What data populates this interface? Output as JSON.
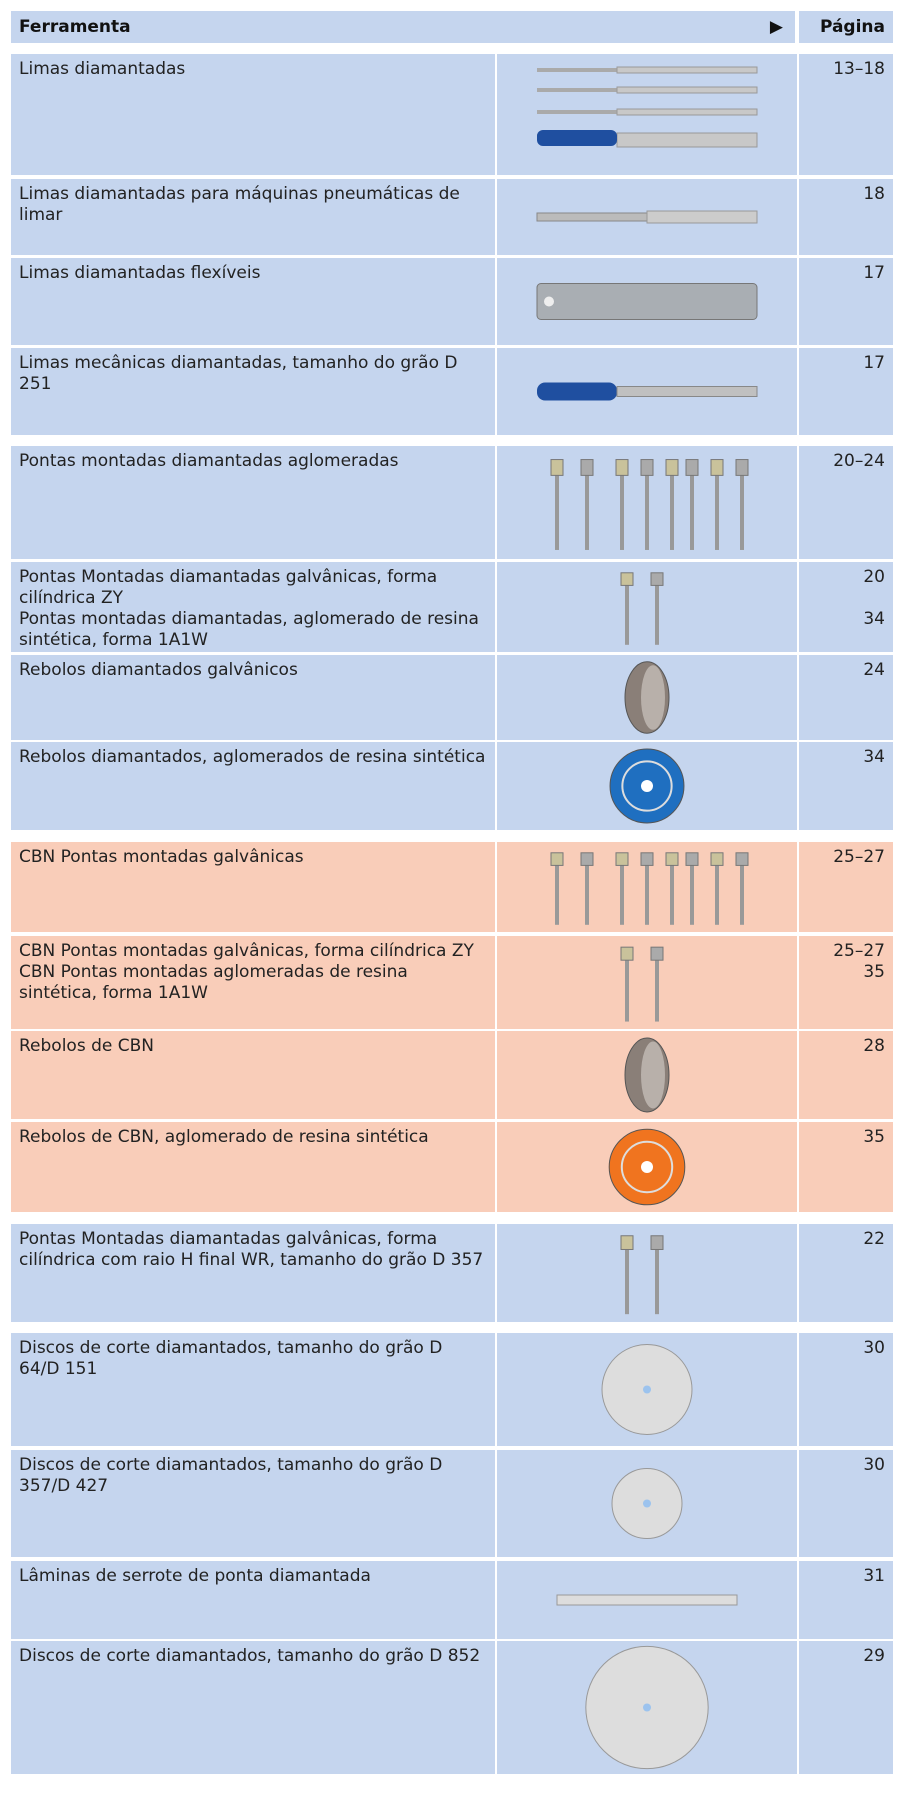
{
  "header": {
    "tool": "Ferramenta",
    "arrow": "▶",
    "page": "Página"
  },
  "rows": [
    {
      "entries": [
        {
          "tool": "Limas diamantadas",
          "page": "13–18"
        }
      ]
    },
    {
      "entries": [
        {
          "tool": "Limas diamantadas para máquinas pneumáticas de limar",
          "page": "18"
        }
      ]
    },
    {
      "entries": [
        {
          "tool": "Limas diamantadas flexíveis",
          "page": "17"
        }
      ]
    },
    {
      "entries": [
        {
          "tool": "Limas mecânicas diamantadas, tamanho do grão D 251",
          "page": "17"
        }
      ]
    },
    {
      "entries": [
        {
          "tool": "Pontas montadas diamantadas aglomeradas",
          "page": "20–24"
        }
      ]
    },
    {
      "entries": [
        {
          "tool": "Pontas Montadas diamantadas galvânicas, forma cilíndrica ZY",
          "page": "20"
        },
        {
          "tool": "Pontas montadas diamantadas, aglomerado de resina sintética, forma 1A1W",
          "page": "34"
        }
      ]
    },
    {
      "entries": [
        {
          "tool": "Rebolos diamantados galvânicos",
          "page": "24"
        }
      ]
    },
    {
      "entries": [
        {
          "tool": "Rebolos diamantados, aglomerados de resina sintética",
          "page": "34"
        }
      ]
    },
    {
      "entries": [
        {
          "tool": "CBN Pontas montadas galvânicas",
          "page": "25–27"
        }
      ]
    },
    {
      "entries": [
        {
          "tool": "CBN Pontas montadas galvânicas, forma cilíndrica ZY",
          "page": "25–27"
        },
        {
          "tool": "CBN Pontas montadas aglomeradas de resina sintética, forma 1A1W",
          "page": "35"
        }
      ]
    },
    {
      "entries": [
        {
          "tool": "Rebolos de CBN",
          "page": "28"
        }
      ]
    },
    {
      "entries": [
        {
          "tool": "Rebolos de CBN, aglomerado de resina sintética",
          "page": "35"
        }
      ]
    },
    {
      "entries": [
        {
          "tool": "Pontas Montadas diamantadas galvânicas, forma cilíndrica com raio H final WR, tamanho do grão D 357",
          "page": "22"
        }
      ]
    },
    {
      "entries": [
        {
          "tool": "Discos de corte diamantados, tamanho do grão D 64/D 151",
          "page": "30"
        }
      ]
    },
    {
      "entries": [
        {
          "tool": "Discos de corte diamantados, tamanho do grão D 357/D 427",
          "page": "30"
        }
      ]
    },
    {
      "entries": [
        {
          "tool": "Lâminas de serrote de ponta diamantada",
          "page": "31"
        }
      ]
    },
    {
      "entries": [
        {
          "tool": "Discos de corte diamantados, tamanho do grão D 852",
          "page": "29"
        }
      ]
    }
  ]
}
